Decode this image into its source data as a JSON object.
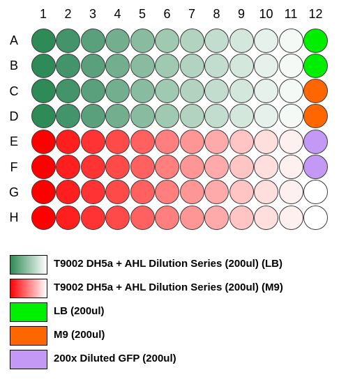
{
  "plate": {
    "columns": [
      "1",
      "2",
      "3",
      "4",
      "5",
      "6",
      "7",
      "8",
      "9",
      "10",
      "11",
      "12"
    ],
    "rows": [
      "A",
      "B",
      "C",
      "D",
      "E",
      "F",
      "G",
      "H"
    ],
    "well_colors": {
      "A": [
        "#2e8b57",
        "#43946a",
        "#5ba07c",
        "#73ae8f",
        "#88bb9f",
        "#9fc9b0",
        "#b1d3c0",
        "#c2dccd",
        "#d3e7dc",
        "#e6f1eb",
        "#f4f9f6",
        "#00ee00"
      ],
      "B": [
        "#2e8b57",
        "#43946a",
        "#5ba07c",
        "#73ae8f",
        "#88bb9f",
        "#9fc9b0",
        "#b1d3c0",
        "#c2dccd",
        "#d3e7dc",
        "#e6f1eb",
        "#f4f9f6",
        "#00ee00"
      ],
      "C": [
        "#2e8b57",
        "#43946a",
        "#5ba07c",
        "#73ae8f",
        "#88bb9f",
        "#9fc9b0",
        "#b1d3c0",
        "#c2dccd",
        "#d3e7dc",
        "#e6f1eb",
        "#f4f9f6",
        "#ff6600"
      ],
      "D": [
        "#2e8b57",
        "#43946a",
        "#5ba07c",
        "#73ae8f",
        "#88bb9f",
        "#9fc9b0",
        "#b1d3c0",
        "#c2dccd",
        "#d3e7dc",
        "#e6f1eb",
        "#f4f9f6",
        "#ff6600"
      ],
      "E": [
        "#ff0000",
        "#ff1f1f",
        "#ff3333",
        "#ff4a4a",
        "#ff6161",
        "#ff7f7f",
        "#ff9696",
        "#ffaaaa",
        "#ffc4c4",
        "#ffdede",
        "#fff0f0",
        "#c399f5"
      ],
      "F": [
        "#ff0000",
        "#ff1f1f",
        "#ff3333",
        "#ff4a4a",
        "#ff6161",
        "#ff7f7f",
        "#ff9696",
        "#ffaaaa",
        "#ffc4c4",
        "#ffdede",
        "#fff0f0",
        "#c399f5"
      ],
      "G": [
        "#ff0000",
        "#ff1f1f",
        "#ff3333",
        "#ff4a4a",
        "#ff6161",
        "#ff7f7f",
        "#ff9696",
        "#ffaaaa",
        "#ffc4c4",
        "#ffdede",
        "#fff0f0",
        "#ffffff"
      ],
      "H": [
        "#ff0000",
        "#ff1f1f",
        "#ff3333",
        "#ff4a4a",
        "#ff6161",
        "#ff7f7f",
        "#ff9696",
        "#ffaaaa",
        "#ffc4c4",
        "#ffdede",
        "#fff0f0",
        "#ffffff"
      ]
    }
  },
  "legend": [
    {
      "label": "T9002 DH5a + AHL Dilution Series (200ul) (LB)",
      "swatch_kind": "gradient",
      "color_start": "#2e8b57",
      "color_end": "#ffffff"
    },
    {
      "label": "T9002 DH5a + AHL Dilution Series (200ul) (M9)",
      "swatch_kind": "gradient",
      "color_start": "#ff0000",
      "color_end": "#ffffff"
    },
    {
      "label": "LB (200ul)",
      "swatch_kind": "solid",
      "color_start": "#00ee00"
    },
    {
      "label": "M9 (200ul)",
      "swatch_kind": "solid",
      "color_start": "#ff6600"
    },
    {
      "label": "200x Diluted GFP (200ul)",
      "swatch_kind": "solid",
      "color_start": "#c399f5"
    }
  ]
}
